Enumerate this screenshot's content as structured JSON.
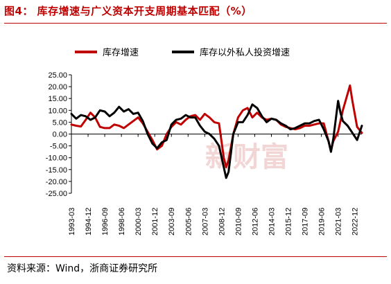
{
  "header": {
    "title": "图4： 库存增速与广义资本开支周期基本匹配（%）"
  },
  "footer": {
    "source": "资料来源：Wind，浙商证券研究所"
  },
  "watermark": "新财富",
  "colors": {
    "accent": "#c00000",
    "series_red": "#c00000",
    "series_black": "#000000"
  },
  "chart_data": {
    "type": "line",
    "title": "",
    "xlabel": "",
    "ylabel": "",
    "ylim": [
      -25,
      25
    ],
    "yticks": [
      "25.00",
      "20.00",
      "15.00",
      "10.00",
      "5.00",
      "0.00",
      "-5.00",
      "-10.00",
      "-15.00",
      "-20.00",
      "-25.00"
    ],
    "x_range": [
      "1993-03",
      "2023-09"
    ],
    "xticks": [
      "1993-03",
      "1994-12",
      "1996-09",
      "1998-06",
      "2000-03",
      "2001-12",
      "2003-09",
      "2005-06",
      "2007-03",
      "2008-12",
      "2010-09",
      "2012-06",
      "2014-03",
      "2015-12",
      "2017-09",
      "2019-06",
      "2021-03",
      "2022-12"
    ],
    "legend_position": "top",
    "series": [
      {
        "name": "库存增速",
        "color": "#c00000",
        "points": [
          [
            "1993-03",
            4.0
          ],
          [
            "1993-09",
            3.5
          ],
          [
            "1994-03",
            3.2
          ],
          [
            "1994-09",
            6.0
          ],
          [
            "1995-03",
            9.0
          ],
          [
            "1995-09",
            7.0
          ],
          [
            "1996-03",
            3.0
          ],
          [
            "1996-09",
            2.5
          ],
          [
            "1997-03",
            2.5
          ],
          [
            "1997-09",
            4.0
          ],
          [
            "1998-03",
            3.5
          ],
          [
            "1998-09",
            2.5
          ],
          [
            "1999-03",
            4.0
          ],
          [
            "1999-09",
            5.5
          ],
          [
            "2000-03",
            7.0
          ],
          [
            "2000-09",
            4.5
          ],
          [
            "2001-03",
            1.0
          ],
          [
            "2001-09",
            -2.5
          ],
          [
            "2002-03",
            -6.5
          ],
          [
            "2002-09",
            -5.0
          ],
          [
            "2003-03",
            0.0
          ],
          [
            "2003-09",
            3.0
          ],
          [
            "2004-03",
            5.0
          ],
          [
            "2004-09",
            4.0
          ],
          [
            "2005-03",
            6.0
          ],
          [
            "2005-09",
            7.5
          ],
          [
            "2006-03",
            8.0
          ],
          [
            "2006-09",
            6.0
          ],
          [
            "2007-03",
            8.5
          ],
          [
            "2007-09",
            7.0
          ],
          [
            "2008-03",
            5.0
          ],
          [
            "2008-09",
            4.5
          ],
          [
            "2009-03",
            -10.0
          ],
          [
            "2009-06",
            -14.0
          ],
          [
            "2009-09",
            -11.0
          ],
          [
            "2010-03",
            0.0
          ],
          [
            "2010-09",
            7.0
          ],
          [
            "2011-03",
            10.0
          ],
          [
            "2011-09",
            11.0
          ],
          [
            "2012-03",
            7.0
          ],
          [
            "2012-09",
            9.0
          ],
          [
            "2013-03",
            7.0
          ],
          [
            "2013-09",
            6.0
          ],
          [
            "2014-03",
            6.5
          ],
          [
            "2014-09",
            6.0
          ],
          [
            "2015-03",
            4.0
          ],
          [
            "2015-09",
            3.0
          ],
          [
            "2016-03",
            2.5
          ],
          [
            "2016-09",
            2.0
          ],
          [
            "2017-03",
            2.5
          ],
          [
            "2017-09",
            3.5
          ],
          [
            "2018-03",
            3.5
          ],
          [
            "2018-09",
            4.0
          ],
          [
            "2019-03",
            4.5
          ],
          [
            "2019-09",
            4.5
          ],
          [
            "2020-03",
            -3.0
          ],
          [
            "2020-06",
            -7.0
          ],
          [
            "2020-09",
            -3.0
          ],
          [
            "2021-03",
            1.0
          ],
          [
            "2021-09",
            10.0
          ],
          [
            "2022-03",
            17.0
          ],
          [
            "2022-06",
            20.5
          ],
          [
            "2022-09",
            14.0
          ],
          [
            "2023-03",
            3.0
          ],
          [
            "2023-09",
            0.5
          ]
        ]
      },
      {
        "name": "库存以外私人投资增速",
        "color": "#000000",
        "points": [
          [
            "1993-03",
            8.5
          ],
          [
            "1993-09",
            6.5
          ],
          [
            "1994-03",
            8.0
          ],
          [
            "1994-09",
            7.5
          ],
          [
            "1995-03",
            6.0
          ],
          [
            "1995-09",
            7.0
          ],
          [
            "1996-03",
            10.0
          ],
          [
            "1996-09",
            9.5
          ],
          [
            "1997-03",
            7.5
          ],
          [
            "1997-09",
            9.0
          ],
          [
            "1998-03",
            11.5
          ],
          [
            "1998-09",
            9.5
          ],
          [
            "1999-03",
            10.5
          ],
          [
            "1999-09",
            8.5
          ],
          [
            "2000-03",
            9.0
          ],
          [
            "2000-09",
            5.5
          ],
          [
            "2001-03",
            0.0
          ],
          [
            "2001-09",
            -4.0
          ],
          [
            "2002-03",
            -6.0
          ],
          [
            "2002-09",
            -3.5
          ],
          [
            "2003-03",
            -2.5
          ],
          [
            "2003-09",
            4.0
          ],
          [
            "2004-03",
            6.0
          ],
          [
            "2004-09",
            6.5
          ],
          [
            "2005-03",
            8.0
          ],
          [
            "2005-09",
            7.0
          ],
          [
            "2006-03",
            7.0
          ],
          [
            "2006-09",
            3.5
          ],
          [
            "2007-03",
            1.0
          ],
          [
            "2007-09",
            0.0
          ],
          [
            "2008-03",
            -2.0
          ],
          [
            "2008-09",
            -5.0
          ],
          [
            "2009-03",
            -14.0
          ],
          [
            "2009-06",
            -18.5
          ],
          [
            "2009-09",
            -16.0
          ],
          [
            "2010-03",
            0.0
          ],
          [
            "2010-09",
            5.0
          ],
          [
            "2011-03",
            5.0
          ],
          [
            "2011-09",
            8.0
          ],
          [
            "2012-03",
            12.5
          ],
          [
            "2012-09",
            11.0
          ],
          [
            "2013-03",
            7.5
          ],
          [
            "2013-09",
            5.0
          ],
          [
            "2014-03",
            6.5
          ],
          [
            "2014-09",
            6.0
          ],
          [
            "2015-03",
            4.5
          ],
          [
            "2015-09",
            3.5
          ],
          [
            "2016-03",
            2.0
          ],
          [
            "2016-09",
            2.5
          ],
          [
            "2017-03",
            3.5
          ],
          [
            "2017-09",
            4.5
          ],
          [
            "2018-03",
            4.5
          ],
          [
            "2018-09",
            5.5
          ],
          [
            "2019-03",
            6.0
          ],
          [
            "2019-09",
            2.0
          ],
          [
            "2020-03",
            -3.0
          ],
          [
            "2020-06",
            -7.5
          ],
          [
            "2020-09",
            -2.0
          ],
          [
            "2021-03",
            14.0
          ],
          [
            "2021-06",
            9.0
          ],
          [
            "2021-09",
            5.5
          ],
          [
            "2022-03",
            3.5
          ],
          [
            "2022-09",
            0.5
          ],
          [
            "2023-03",
            -2.5
          ],
          [
            "2023-09",
            3.5
          ]
        ]
      }
    ]
  }
}
